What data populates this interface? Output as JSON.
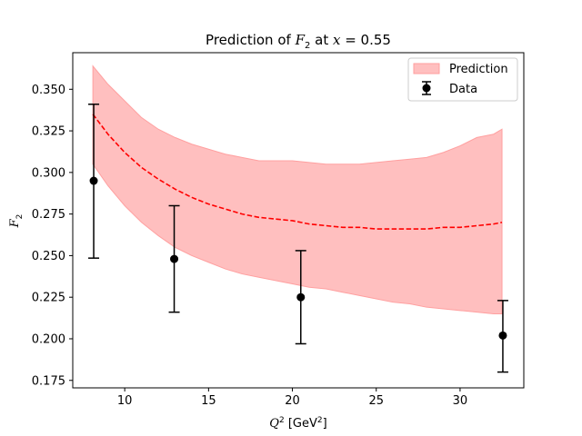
{
  "chart_data": {
    "type": "line",
    "title": {
      "prefix": "Prediction of ",
      "var": "F",
      "var_sub": "2",
      "mid": " at ",
      "x_var": "x",
      "suffix": " = 0.55"
    },
    "xlabel": {
      "var": "Q",
      "sup": "2",
      "unit_open": " [GeV",
      "unit_sup": "2",
      "unit_close": "]"
    },
    "ylabel": {
      "var": "F",
      "sub": "2"
    },
    "xlim": [
      6.9,
      33.8
    ],
    "ylim": [
      0.1705,
      0.372
    ],
    "xticks": [
      10,
      15,
      20,
      25,
      30
    ],
    "xtick_labels": [
      "10",
      "15",
      "20",
      "25",
      "30"
    ],
    "yticks": [
      0.175,
      0.2,
      0.225,
      0.25,
      0.275,
      0.3,
      0.325,
      0.35
    ],
    "ytick_labels": [
      "0.175",
      "0.200",
      "0.225",
      "0.250",
      "0.275",
      "0.300",
      "0.325",
      "0.350"
    ],
    "legend": {
      "position": "top-right",
      "entries": [
        {
          "label": "Prediction",
          "kind": "band"
        },
        {
          "label": "Data",
          "kind": "errorbar"
        }
      ]
    },
    "series": [
      {
        "name": "Prediction",
        "kind": "line-with-band",
        "color": "#ff0000",
        "band_color": "#ffbfbf",
        "x": [
          8.1,
          9,
          10,
          11,
          12,
          13,
          14,
          15,
          16,
          17,
          18,
          19,
          20,
          21,
          22,
          23,
          24,
          25,
          26,
          27,
          28,
          29,
          30,
          31,
          32,
          32.5
        ],
        "y": [
          0.335,
          0.323,
          0.312,
          0.303,
          0.296,
          0.29,
          0.285,
          0.281,
          0.278,
          0.275,
          0.273,
          0.272,
          0.271,
          0.269,
          0.268,
          0.267,
          0.267,
          0.266,
          0.266,
          0.266,
          0.266,
          0.267,
          0.267,
          0.268,
          0.269,
          0.27
        ],
        "lower": [
          0.305,
          0.292,
          0.28,
          0.27,
          0.262,
          0.255,
          0.25,
          0.246,
          0.242,
          0.239,
          0.237,
          0.235,
          0.233,
          0.231,
          0.23,
          0.228,
          0.226,
          0.224,
          0.222,
          0.221,
          0.219,
          0.218,
          0.217,
          0.216,
          0.215,
          0.215
        ],
        "upper": [
          0.364,
          0.353,
          0.343,
          0.333,
          0.326,
          0.321,
          0.317,
          0.314,
          0.311,
          0.309,
          0.307,
          0.307,
          0.307,
          0.306,
          0.305,
          0.305,
          0.305,
          0.306,
          0.307,
          0.308,
          0.309,
          0.312,
          0.316,
          0.321,
          0.323,
          0.326
        ]
      },
      {
        "name": "Data",
        "kind": "errorbar",
        "color": "#000000",
        "x": [
          8.15,
          12.95,
          20.5,
          32.55
        ],
        "y": [
          0.295,
          0.248,
          0.225,
          0.202
        ],
        "yerr_low": [
          0.0465,
          0.032,
          0.028,
          0.022
        ],
        "yerr_high": [
          0.046,
          0.032,
          0.028,
          0.021
        ]
      }
    ]
  }
}
